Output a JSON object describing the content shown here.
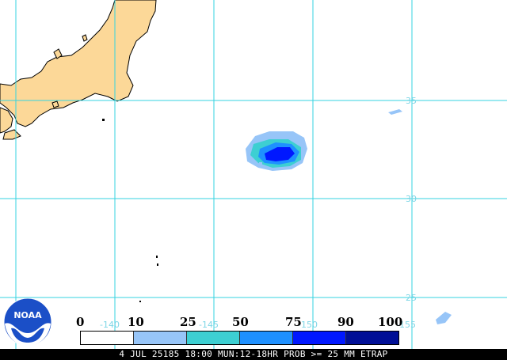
{
  "map": {
    "land_color": "#fcd898",
    "grid_color": "#35d3e0",
    "background": "#ffffff",
    "lat_labels": [
      "35",
      "30",
      "25"
    ],
    "lon_labels": [
      "-140",
      "-145",
      "-150",
      "-155"
    ]
  },
  "legend": {
    "values": [
      "0",
      "10",
      "25",
      "50",
      "75",
      "90",
      "100 %"
    ],
    "colors": [
      "#ffffff",
      "#97c5f8",
      "#3dcfd2",
      "#1e90ff",
      "#0018ff",
      "#000f96"
    ]
  },
  "logo": {
    "text": "NOAA",
    "icon": "noaa-logo-icon"
  },
  "status": {
    "text": "4 JUL 25185 18:00 MUN:12-18HR PROB >= 25 MM ETRAP"
  }
}
